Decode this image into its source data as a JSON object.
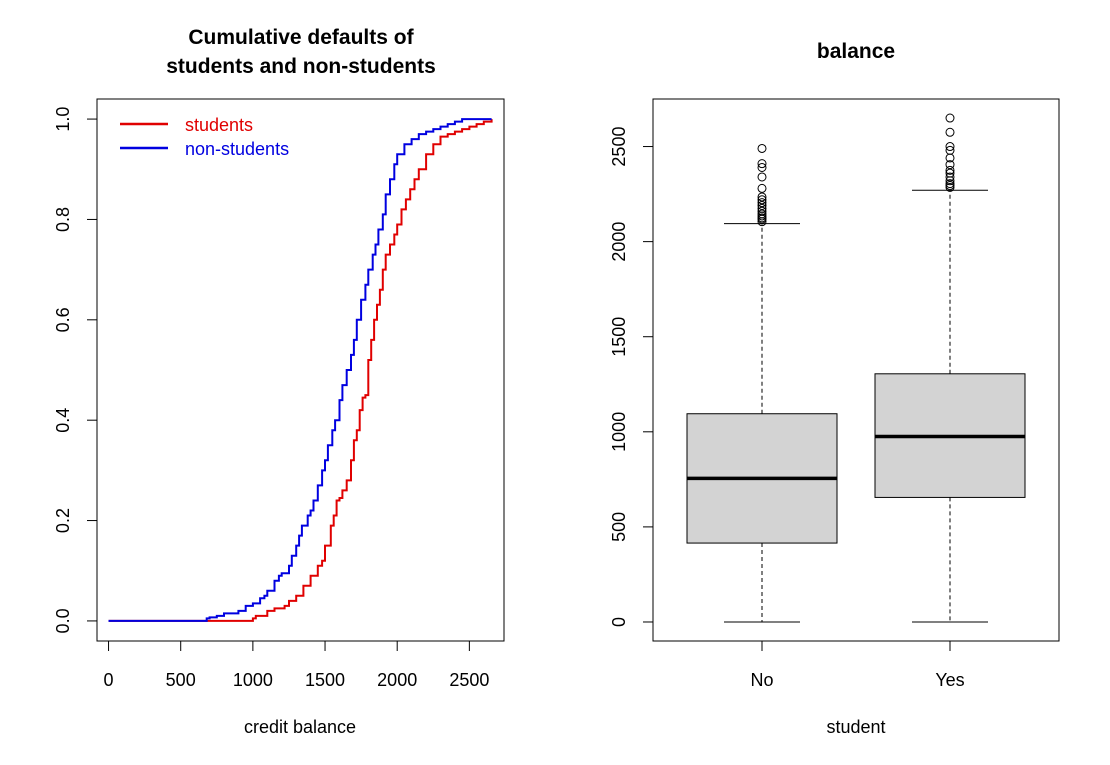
{
  "chart_data": [
    {
      "type": "line",
      "title_lines": [
        "Cumulative defaults of",
        "students and non-students"
      ],
      "xlabel": "credit balance",
      "ylabel": "",
      "xlim": [
        -80,
        2740
      ],
      "ylim": [
        -0.04,
        1.04
      ],
      "xticks": [
        "0",
        "500",
        "1000",
        "1500",
        "2000",
        "2500"
      ],
      "yticks": [
        "0.0",
        "0.2",
        "0.4",
        "0.6",
        "0.8",
        "1.0"
      ],
      "legend_position": "top-left",
      "series": [
        {
          "name": "students",
          "color": "#e00000",
          "x": [
            0,
            500,
            980,
            1000,
            1020,
            1100,
            1150,
            1220,
            1250,
            1300,
            1350,
            1400,
            1450,
            1480,
            1500,
            1540,
            1560,
            1580,
            1600,
            1620,
            1650,
            1680,
            1700,
            1720,
            1740,
            1760,
            1780,
            1800,
            1820,
            1840,
            1860,
            1880,
            1900,
            1920,
            1950,
            1980,
            2000,
            2030,
            2060,
            2090,
            2120,
            2150,
            2200,
            2250,
            2300,
            2350,
            2400,
            2450,
            2500,
            2550,
            2600,
            2654
          ],
          "y": [
            0,
            0,
            0,
            0.005,
            0.01,
            0.02,
            0.025,
            0.03,
            0.04,
            0.05,
            0.07,
            0.09,
            0.11,
            0.12,
            0.15,
            0.19,
            0.21,
            0.24,
            0.245,
            0.26,
            0.28,
            0.32,
            0.36,
            0.38,
            0.42,
            0.445,
            0.45,
            0.52,
            0.56,
            0.6,
            0.63,
            0.66,
            0.7,
            0.73,
            0.75,
            0.77,
            0.79,
            0.82,
            0.84,
            0.86,
            0.88,
            0.9,
            0.93,
            0.95,
            0.965,
            0.97,
            0.975,
            0.98,
            0.985,
            0.99,
            0.995,
            1.0
          ]
        },
        {
          "name": "non-students",
          "color": "#0000e0",
          "x": [
            0,
            640,
            680,
            700,
            750,
            800,
            900,
            950,
            1000,
            1050,
            1080,
            1100,
            1150,
            1180,
            1200,
            1250,
            1270,
            1300,
            1320,
            1340,
            1380,
            1400,
            1420,
            1450,
            1480,
            1500,
            1520,
            1550,
            1570,
            1600,
            1620,
            1650,
            1680,
            1700,
            1720,
            1750,
            1780,
            1800,
            1830,
            1850,
            1870,
            1900,
            1920,
            1950,
            1980,
            2000,
            2050,
            2100,
            2150,
            2200,
            2250,
            2300,
            2350,
            2400,
            2450,
            2500,
            2654
          ],
          "y": [
            0,
            0,
            0.005,
            0.007,
            0.01,
            0.015,
            0.02,
            0.03,
            0.035,
            0.045,
            0.05,
            0.06,
            0.08,
            0.09,
            0.095,
            0.11,
            0.13,
            0.15,
            0.17,
            0.19,
            0.21,
            0.22,
            0.24,
            0.27,
            0.3,
            0.32,
            0.35,
            0.38,
            0.4,
            0.44,
            0.47,
            0.5,
            0.53,
            0.56,
            0.6,
            0.64,
            0.67,
            0.7,
            0.73,
            0.75,
            0.78,
            0.81,
            0.85,
            0.88,
            0.91,
            0.93,
            0.95,
            0.96,
            0.97,
            0.975,
            0.98,
            0.985,
            0.99,
            0.995,
            1.0,
            1.0,
            1.0
          ]
        }
      ]
    },
    {
      "type": "box",
      "title": "balance",
      "xlabel": "student",
      "ylabel": "",
      "categories": [
        "No",
        "Yes"
      ],
      "ylim": [
        -100,
        2750
      ],
      "yticks": [
        0,
        500,
        1000,
        1500,
        2000,
        2500
      ],
      "box_fill": "#d3d3d3",
      "boxes": [
        {
          "label": "No",
          "min": 0,
          "q1": 415,
          "median": 755,
          "q3": 1095,
          "whisker_high": 2095,
          "outliers": [
            2105,
            2118,
            2125,
            2135,
            2145,
            2160,
            2175,
            2190,
            2205,
            2220,
            2235,
            2280,
            2340,
            2390,
            2410,
            2490
          ]
        },
        {
          "label": "Yes",
          "min": 0,
          "q1": 655,
          "median": 975,
          "q3": 1305,
          "whisker_high": 2270,
          "outliers": [
            2285,
            2295,
            2305,
            2320,
            2340,
            2360,
            2375,
            2405,
            2440,
            2480,
            2500,
            2575,
            2650
          ]
        }
      ]
    }
  ]
}
